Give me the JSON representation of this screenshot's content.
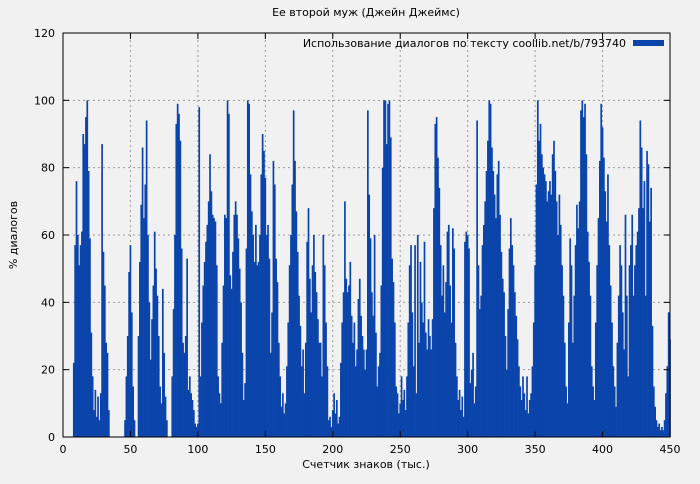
{
  "chart_data": {
    "type": "bar",
    "title": "Ее второй муж (Джейн Джеймс)",
    "legend": "Использование диалогов по тексту coollib.net/b/793740",
    "xlabel": "Счетчик знаков (тыс.)",
    "ylabel": "% диалогов",
    "xlim": [
      0,
      450
    ],
    "ylim": [
      0,
      120
    ],
    "xticks": [
      0,
      50,
      100,
      150,
      200,
      250,
      300,
      350,
      400,
      450
    ],
    "yticks": [
      0,
      20,
      40,
      60,
      80,
      100,
      120
    ],
    "grid": true,
    "legend_position": "top-right-inside",
    "colors": {
      "bar": "#0b45ab",
      "background": "#f1f1f1",
      "grid": "#9a9a9a",
      "border": "#000000"
    },
    "points": [
      [
        8,
        22
      ],
      [
        9,
        57
      ],
      [
        10,
        76
      ],
      [
        11,
        60
      ],
      [
        12,
        51
      ],
      [
        13,
        57
      ],
      [
        14,
        61
      ],
      [
        15,
        90
      ],
      [
        16,
        87
      ],
      [
        17,
        95
      ],
      [
        18,
        100
      ],
      [
        19,
        79
      ],
      [
        20,
        59
      ],
      [
        21,
        31
      ],
      [
        22,
        18
      ],
      [
        23,
        8
      ],
      [
        24,
        14
      ],
      [
        25,
        6
      ],
      [
        26,
        12
      ],
      [
        27,
        5
      ],
      [
        28,
        13
      ],
      [
        29,
        87
      ],
      [
        30,
        55
      ],
      [
        31,
        45
      ],
      [
        32,
        28
      ],
      [
        33,
        25
      ],
      [
        34,
        8
      ],
      [
        46,
        5
      ],
      [
        47,
        18
      ],
      [
        48,
        30
      ],
      [
        49,
        49
      ],
      [
        50,
        57
      ],
      [
        51,
        37
      ],
      [
        52,
        15
      ],
      [
        53,
        5
      ],
      [
        56,
        30
      ],
      [
        57,
        52
      ],
      [
        58,
        69
      ],
      [
        59,
        86
      ],
      [
        60,
        65
      ],
      [
        61,
        75
      ],
      [
        62,
        94
      ],
      [
        63,
        60
      ],
      [
        64,
        40
      ],
      [
        65,
        23
      ],
      [
        66,
        35
      ],
      [
        67,
        45
      ],
      [
        68,
        61
      ],
      [
        69,
        50
      ],
      [
        70,
        42
      ],
      [
        71,
        30
      ],
      [
        72,
        15
      ],
      [
        73,
        10
      ],
      [
        74,
        44
      ],
      [
        75,
        25
      ],
      [
        76,
        12
      ],
      [
        77,
        5
      ],
      [
        81,
        18
      ],
      [
        82,
        38
      ],
      [
        83,
        60
      ],
      [
        84,
        93
      ],
      [
        85,
        99
      ],
      [
        86,
        96
      ],
      [
        87,
        88
      ],
      [
        88,
        56
      ],
      [
        89,
        28
      ],
      [
        90,
        25
      ],
      [
        91,
        30
      ],
      [
        92,
        53
      ],
      [
        93,
        14
      ],
      [
        94,
        18
      ],
      [
        95,
        13
      ],
      [
        96,
        11
      ],
      [
        97,
        8
      ],
      [
        98,
        4
      ],
      [
        99,
        3
      ],
      [
        100,
        4
      ],
      [
        101,
        98
      ],
      [
        102,
        18
      ],
      [
        103,
        34
      ],
      [
        104,
        45
      ],
      [
        105,
        52
      ],
      [
        106,
        58
      ],
      [
        107,
        63
      ],
      [
        108,
        70
      ],
      [
        109,
        84
      ],
      [
        110,
        73
      ],
      [
        111,
        66
      ],
      [
        112,
        65
      ],
      [
        113,
        64
      ],
      [
        114,
        51
      ],
      [
        115,
        18
      ],
      [
        116,
        13
      ],
      [
        117,
        10
      ],
      [
        118,
        28
      ],
      [
        119,
        45
      ],
      [
        120,
        66
      ],
      [
        121,
        65
      ],
      [
        122,
        100
      ],
      [
        123,
        96
      ],
      [
        124,
        48
      ],
      [
        125,
        44
      ],
      [
        126,
        55
      ],
      [
        127,
        66
      ],
      [
        128,
        70
      ],
      [
        129,
        66
      ],
      [
        130,
        59
      ],
      [
        131,
        50
      ],
      [
        132,
        40
      ],
      [
        133,
        25
      ],
      [
        134,
        11
      ],
      [
        135,
        16
      ],
      [
        136,
        56
      ],
      [
        137,
        100
      ],
      [
        138,
        99
      ],
      [
        139,
        78
      ],
      [
        140,
        67
      ],
      [
        141,
        60
      ],
      [
        142,
        52
      ],
      [
        143,
        63
      ],
      [
        144,
        51
      ],
      [
        145,
        52
      ],
      [
        146,
        60
      ],
      [
        147,
        78
      ],
      [
        148,
        90
      ],
      [
        149,
        85
      ],
      [
        150,
        77
      ],
      [
        151,
        60
      ],
      [
        152,
        63
      ],
      [
        153,
        53
      ],
      [
        154,
        25
      ],
      [
        155,
        37
      ],
      [
        156,
        82
      ],
      [
        157,
        75
      ],
      [
        158,
        53
      ],
      [
        159,
        46
      ],
      [
        160,
        28
      ],
      [
        161,
        18
      ],
      [
        162,
        9
      ],
      [
        163,
        13
      ],
      [
        164,
        7
      ],
      [
        165,
        10
      ],
      [
        166,
        21
      ],
      [
        167,
        34
      ],
      [
        168,
        51
      ],
      [
        169,
        60
      ],
      [
        170,
        75
      ],
      [
        171,
        97
      ],
      [
        172,
        82
      ],
      [
        173,
        67
      ],
      [
        174,
        55
      ],
      [
        175,
        42
      ],
      [
        176,
        33
      ],
      [
        177,
        21
      ],
      [
        178,
        26
      ],
      [
        179,
        13
      ],
      [
        180,
        28
      ],
      [
        181,
        58
      ],
      [
        182,
        68
      ],
      [
        183,
        47
      ],
      [
        184,
        37
      ],
      [
        185,
        51
      ],
      [
        186,
        60
      ],
      [
        187,
        49
      ],
      [
        188,
        43
      ],
      [
        189,
        35
      ],
      [
        190,
        28
      ],
      [
        191,
        28
      ],
      [
        192,
        18
      ],
      [
        193,
        60
      ],
      [
        194,
        51
      ],
      [
        195,
        34
      ],
      [
        196,
        21
      ],
      [
        197,
        5
      ],
      [
        198,
        6
      ],
      [
        199,
        3
      ],
      [
        200,
        8
      ],
      [
        201,
        13
      ],
      [
        202,
        7
      ],
      [
        203,
        11
      ],
      [
        204,
        4
      ],
      [
        205,
        6
      ],
      [
        206,
        22
      ],
      [
        207,
        34
      ],
      [
        208,
        43
      ],
      [
        209,
        70
      ],
      [
        210,
        47
      ],
      [
        211,
        43
      ],
      [
        212,
        45
      ],
      [
        213,
        52
      ],
      [
        214,
        36
      ],
      [
        215,
        28
      ],
      [
        216,
        34
      ],
      [
        217,
        21
      ],
      [
        218,
        26
      ],
      [
        219,
        41
      ],
      [
        220,
        47
      ],
      [
        221,
        36
      ],
      [
        222,
        30
      ],
      [
        223,
        26
      ],
      [
        224,
        20
      ],
      [
        225,
        26
      ],
      [
        226,
        97
      ],
      [
        227,
        72
      ],
      [
        228,
        59
      ],
      [
        229,
        43
      ],
      [
        230,
        36
      ],
      [
        231,
        60
      ],
      [
        232,
        31
      ],
      [
        233,
        15
      ],
      [
        234,
        21
      ],
      [
        235,
        25
      ],
      [
        236,
        45
      ],
      [
        237,
        80
      ],
      [
        238,
        100
      ],
      [
        239,
        100
      ],
      [
        240,
        87
      ],
      [
        241,
        99
      ],
      [
        242,
        100
      ],
      [
        243,
        89
      ],
      [
        244,
        53
      ],
      [
        245,
        46
      ],
      [
        246,
        34
      ],
      [
        247,
        15
      ],
      [
        248,
        13
      ],
      [
        249,
        7
      ],
      [
        250,
        10
      ],
      [
        251,
        18
      ],
      [
        252,
        11
      ],
      [
        253,
        14
      ],
      [
        254,
        8
      ],
      [
        255,
        18
      ],
      [
        256,
        34
      ],
      [
        257,
        51
      ],
      [
        258,
        57
      ],
      [
        259,
        37
      ],
      [
        260,
        21
      ],
      [
        261,
        57
      ],
      [
        262,
        13
      ],
      [
        263,
        60
      ],
      [
        264,
        28
      ],
      [
        265,
        52
      ],
      [
        266,
        40
      ],
      [
        267,
        34
      ],
      [
        268,
        58
      ],
      [
        269,
        31
      ],
      [
        270,
        26
      ],
      [
        271,
        35
      ],
      [
        272,
        30
      ],
      [
        273,
        26
      ],
      [
        274,
        35
      ],
      [
        275,
        68
      ],
      [
        276,
        93
      ],
      [
        277,
        95
      ],
      [
        278,
        83
      ],
      [
        279,
        74
      ],
      [
        280,
        57
      ],
      [
        281,
        42
      ],
      [
        282,
        51
      ],
      [
        283,
        37
      ],
      [
        284,
        46
      ],
      [
        285,
        61
      ],
      [
        286,
        63
      ],
      [
        287,
        45
      ],
      [
        288,
        34
      ],
      [
        289,
        62
      ],
      [
        290,
        56
      ],
      [
        291,
        28
      ],
      [
        292,
        18
      ],
      [
        293,
        11
      ],
      [
        294,
        14
      ],
      [
        295,
        8
      ],
      [
        296,
        12
      ],
      [
        297,
        6
      ],
      [
        298,
        58
      ],
      [
        299,
        61
      ],
      [
        300,
        60
      ],
      [
        301,
        56
      ],
      [
        302,
        16
      ],
      [
        303,
        20
      ],
      [
        304,
        25
      ],
      [
        305,
        10
      ],
      [
        306,
        15
      ],
      [
        307,
        94
      ],
      [
        308,
        51
      ],
      [
        309,
        38
      ],
      [
        310,
        42
      ],
      [
        311,
        57
      ],
      [
        312,
        63
      ],
      [
        313,
        70
      ],
      [
        314,
        79
      ],
      [
        315,
        88
      ],
      [
        316,
        100
      ],
      [
        317,
        99
      ],
      [
        318,
        86
      ],
      [
        319,
        79
      ],
      [
        320,
        72
      ],
      [
        321,
        65
      ],
      [
        322,
        78
      ],
      [
        323,
        82
      ],
      [
        324,
        66
      ],
      [
        325,
        55
      ],
      [
        326,
        47
      ],
      [
        327,
        43
      ],
      [
        328,
        30
      ],
      [
        329,
        20
      ],
      [
        330,
        38
      ],
      [
        331,
        56
      ],
      [
        332,
        65
      ],
      [
        333,
        57
      ],
      [
        334,
        51
      ],
      [
        335,
        43
      ],
      [
        336,
        36
      ],
      [
        337,
        29
      ],
      [
        338,
        21
      ],
      [
        339,
        15
      ],
      [
        340,
        11
      ],
      [
        341,
        18
      ],
      [
        342,
        13
      ],
      [
        343,
        8
      ],
      [
        344,
        18
      ],
      [
        345,
        7
      ],
      [
        346,
        11
      ],
      [
        347,
        13
      ],
      [
        348,
        21
      ],
      [
        349,
        34
      ],
      [
        350,
        51
      ],
      [
        351,
        75
      ],
      [
        352,
        100
      ],
      [
        353,
        88
      ],
      [
        354,
        93
      ],
      [
        355,
        84
      ],
      [
        356,
        80
      ],
      [
        357,
        78
      ],
      [
        358,
        76
      ],
      [
        359,
        70
      ],
      [
        360,
        73
      ],
      [
        361,
        76
      ],
      [
        362,
        72
      ],
      [
        363,
        84
      ],
      [
        364,
        88
      ],
      [
        365,
        79
      ],
      [
        366,
        70
      ],
      [
        367,
        60
      ],
      [
        368,
        72
      ],
      [
        369,
        63
      ],
      [
        370,
        51
      ],
      [
        371,
        42
      ],
      [
        372,
        28
      ],
      [
        373,
        15
      ],
      [
        374,
        10
      ],
      [
        375,
        34
      ],
      [
        376,
        59
      ],
      [
        377,
        51
      ],
      [
        378,
        28
      ],
      [
        379,
        42
      ],
      [
        380,
        57
      ],
      [
        381,
        69
      ],
      [
        382,
        62
      ],
      [
        383,
        70
      ],
      [
        384,
        97
      ],
      [
        385,
        100
      ],
      [
        386,
        95
      ],
      [
        387,
        99
      ],
      [
        388,
        84
      ],
      [
        389,
        61
      ],
      [
        390,
        52
      ],
      [
        391,
        42
      ],
      [
        392,
        21
      ],
      [
        393,
        15
      ],
      [
        394,
        11
      ],
      [
        395,
        34
      ],
      [
        396,
        51
      ],
      [
        397,
        65
      ],
      [
        398,
        82
      ],
      [
        399,
        99
      ],
      [
        400,
        92
      ],
      [
        401,
        83
      ],
      [
        402,
        73
      ],
      [
        403,
        64
      ],
      [
        404,
        78
      ],
      [
        405,
        57
      ],
      [
        406,
        45
      ],
      [
        407,
        34
      ],
      [
        408,
        21
      ],
      [
        409,
        15
      ],
      [
        410,
        9
      ],
      [
        411,
        28
      ],
      [
        412,
        42
      ],
      [
        413,
        57
      ],
      [
        414,
        51
      ],
      [
        415,
        37
      ],
      [
        416,
        26
      ],
      [
        417,
        66
      ],
      [
        418,
        42
      ],
      [
        419,
        18
      ],
      [
        420,
        51
      ],
      [
        421,
        57
      ],
      [
        422,
        66
      ],
      [
        423,
        42
      ],
      [
        424,
        51
      ],
      [
        425,
        57
      ],
      [
        426,
        61
      ],
      [
        427,
        68
      ],
      [
        428,
        94
      ],
      [
        429,
        86
      ],
      [
        430,
        68
      ],
      [
        431,
        76
      ],
      [
        432,
        42
      ],
      [
        433,
        85
      ],
      [
        434,
        81
      ],
      [
        435,
        64
      ],
      [
        436,
        74
      ],
      [
        437,
        33
      ],
      [
        438,
        15
      ],
      [
        439,
        9
      ],
      [
        440,
        5
      ],
      [
        441,
        3
      ],
      [
        442,
        4
      ],
      [
        443,
        2
      ],
      [
        444,
        3
      ],
      [
        445,
        2
      ],
      [
        446,
        5
      ],
      [
        447,
        13
      ],
      [
        448,
        21
      ],
      [
        449,
        37
      ],
      [
        450,
        29
      ]
    ]
  }
}
